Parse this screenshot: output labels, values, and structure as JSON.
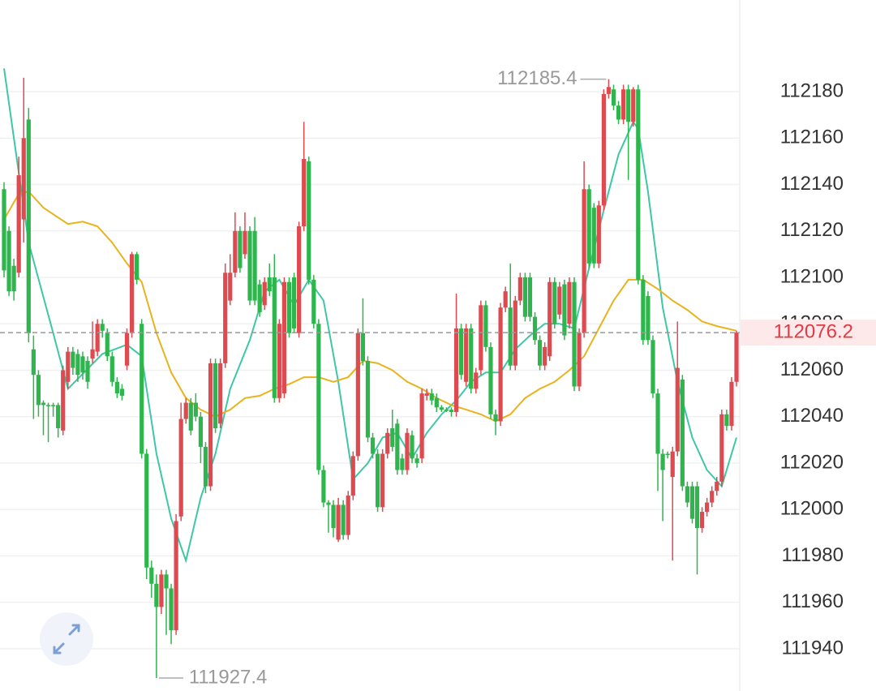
{
  "chart_data": {
    "type": "candlestick",
    "up_color": "#de4a50",
    "down_color": "#2fb54e",
    "ylim": [
      111921.8,
      112219.5
    ],
    "yticks": [
      111940,
      111960,
      111980,
      112000,
      112020,
      112040,
      112060,
      112080,
      112100,
      112120,
      112140,
      112160,
      112180
    ],
    "grid": true,
    "open": [
      112138,
      112120,
      112105,
      112102,
      112125,
      112168,
      112069,
      112058,
      112046,
      112045,
      112045,
      112045,
      112034,
      112055,
      112068,
      112067,
      112066,
      112064,
      112065,
      112068,
      112080,
      112076,
      112066,
      112055,
      112052,
      112062,
      112076,
      112110,
      112080,
      112024,
      111975,
      111968,
      111958,
      111972,
      111966,
      111948,
      111997,
      112039,
      112046,
      112046,
      112040,
      112027,
      112010,
      112063,
      112037,
      112063,
      112090,
      112102,
      112120,
      112110,
      112120,
      112120,
      112097,
      112088,
      112100,
      112100,
      112048,
      112050,
      112098,
      112100,
      112076,
      112122,
      112150,
      112099,
      112080,
      112017,
      112003,
      112002,
      111987,
      112002,
      111989,
      112006,
      112023,
      112076,
      112064,
      112031,
      112024,
      112001,
      112024,
      112035,
      112037,
      112022,
      112017,
      112032,
      112022,
      112022,
      112049,
      112050,
      112048,
      112044,
      112043,
      112043,
      112042,
      112078,
      112055,
      112078,
      112052,
      112060,
      112088,
      112070,
      112041,
      112038,
      112087,
      112087,
      112062,
      112090,
      112100,
      112100,
      112083,
      112073,
      112062,
      112066,
      112098,
      112084,
      112097,
      112080,
      112098,
      112053,
      112076,
      112138,
      112130,
      112106,
      112131,
      112179,
      112181,
      112174,
      112168,
      112181,
      112167,
      112181,
      112099,
      112092,
      112073,
      112050,
      112024,
      112024,
      112014,
      112025,
      112056,
      112010,
      112010,
      112010,
      111992,
      111999,
      112003,
      112008,
      112012,
      112041,
      112036,
      112055
    ],
    "high": [
      112141,
      112122,
      112108,
      112152,
      112186,
      112173,
      112075,
      112060,
      112047,
      112046,
      112046,
      112046,
      112062,
      112070,
      112070,
      112069,
      112068,
      112066,
      112081,
      112082,
      112082,
      112078,
      112068,
      112057,
      112054,
      112078,
      112111,
      112111,
      112082,
      112026,
      111978,
      111972,
      111974,
      111974,
      111968,
      111998,
      112046,
      112048,
      112048,
      112050,
      112042,
      112029,
      112065,
      112065,
      112065,
      112106,
      112110,
      112128,
      112122,
      112128,
      112122,
      112126,
      112099,
      112100,
      112106,
      112110,
      112082,
      112100,
      112100,
      112102,
      112124,
      112167,
      112152,
      112101,
      112082,
      112019,
      112004,
      112004,
      112005,
      112004,
      112008,
      112025,
      112078,
      112091,
      112066,
      112033,
      112026,
      112026,
      112035,
      112043,
      112039,
      112024,
      112035,
      112034,
      112024,
      112052,
      112052,
      112052,
      112050,
      112045,
      112044,
      112044,
      112093,
      112080,
      112080,
      112080,
      112061,
      112090,
      112090,
      112072,
      112043,
      112089,
      112096,
      112106,
      112092,
      112102,
      112102,
      112102,
      112085,
      112075,
      112072,
      112100,
      112100,
      112098,
      112099,
      112100,
      112100,
      112078,
      112150,
      112140,
      112132,
      112133,
      112181,
      112185.4,
      112183,
      112176,
      112183,
      112183,
      112182,
      112183,
      112101,
      112094,
      112075,
      112052,
      112026,
      112025,
      112027,
      112081,
      112058,
      112012,
      112012,
      112012,
      112001,
      112005,
      112010,
      112014,
      112043,
      112043,
      112057,
      112077
    ],
    "low": [
      112100,
      112092,
      112090,
      112100,
      112115,
      112072,
      112039,
      112040,
      112032,
      112029,
      112040,
      112031,
      112032,
      112052,
      112058,
      112055,
      112056,
      112052,
      112063,
      112066,
      112074,
      112064,
      112053,
      112048,
      112047,
      112060,
      112074,
      112097,
      112022,
      111970,
      111962,
      111927.4,
      111955,
      111946,
      111942,
      111946,
      111995,
      112037,
      112032,
      112038,
      112020,
      112007,
      112008,
      112033,
      112035,
      112061,
      112088,
      112100,
      112102,
      112108,
      112088,
      112088,
      112083,
      112086,
      112092,
      112046,
      112046,
      112048,
      112074,
      112076,
      112074,
      112120,
      112097,
      112078,
      112015,
      112001,
      111990,
      111988,
      111986,
      111987,
      111987,
      112004,
      112021,
      112062,
      112029,
      112022,
      111999,
      111999,
      112022,
      112025,
      112015,
      112015,
      112015,
      112020,
      112018,
      112020,
      112047,
      112045,
      112042,
      112042,
      112042,
      112040,
      112040,
      112056,
      112053,
      112050,
      112050,
      112058,
      112068,
      112039,
      112032,
      112036,
      112085,
      112060,
      112060,
      112088,
      112081,
      112081,
      112071,
      112060,
      112060,
      112064,
      112078,
      112082,
      112073,
      112078,
      112051,
      112051,
      112074,
      112104,
      112104,
      112104,
      112129,
      112177,
      112172,
      112166,
      112166,
      112142,
      112165,
      112097,
      112071,
      112071,
      112048,
      112008,
      111995,
      112022,
      111978,
      112023,
      112008,
      112001,
      111994,
      111972,
      111990,
      111997,
      112001,
      112006,
      112010,
      112034,
      112034,
      112053
    ],
    "close": [
      112103,
      112094,
      112094,
      112144,
      112160,
      112076,
      112058,
      112045,
      112045,
      112045,
      112045,
      112035,
      112060,
      112068,
      112061,
      112058,
      112059,
      112055,
      112069,
      112080,
      112077,
      112066,
      112055,
      112050,
      112049,
      112076,
      112110,
      112099,
      112024,
      111975,
      111968,
      111958,
      111972,
      111966,
      111948,
      111995,
      112039,
      112046,
      112034,
      112040,
      112027,
      112010,
      112063,
      112035,
      112063,
      112102,
      112102,
      112120,
      112104,
      112120,
      112090,
      112090,
      112085,
      112098,
      112094,
      112048,
      112080,
      112098,
      112076,
      112078,
      112122,
      112151,
      112099,
      112080,
      112017,
      112003,
      112002,
      111992,
      112002,
      111989,
      112006,
      112023,
      112076,
      112064,
      112031,
      112024,
      112001,
      112024,
      112033,
      112027,
      112017,
      112017,
      112033,
      112022,
      112020,
      112050,
      112050,
      112047,
      112044,
      112043,
      112043,
      112042,
      112078,
      112058,
      112078,
      112052,
      112059,
      112088,
      112070,
      112041,
      112038,
      112087,
      112094,
      112062,
      112090,
      112100,
      112083,
      112083,
      112073,
      112062,
      112070,
      112098,
      112080,
      112096,
      112075,
      112098,
      112053,
      112076,
      112138,
      112106,
      112106,
      112131,
      112179,
      112182,
      112174,
      112168,
      112181,
      112167,
      112181,
      112099,
      112073,
      112073,
      112050,
      112024,
      112017,
      112024,
      112025,
      112061,
      112010,
      112003,
      111996,
      111992,
      111999,
      112003,
      112008,
      112012,
      112041,
      112036,
      112055,
      112076.2
    ],
    "series": [
      {
        "color": "#3ec7a6",
        "x": [
          0,
          5,
          10,
          13,
          20,
          25,
          28,
          31,
          34,
          37,
          40,
          43,
          46,
          50,
          53,
          56,
          59,
          62,
          65,
          68,
          71,
          74,
          77,
          80,
          83,
          86,
          89,
          92,
          95,
          98,
          101,
          104,
          107,
          110,
          113,
          116,
          119,
          122,
          125,
          128,
          129,
          131,
          134,
          137,
          140,
          143,
          146,
          149
        ],
        "values": [
          112190,
          112115,
          112076,
          112052,
          112067,
          112071,
          112066,
          112024,
          111996,
          111978,
          112005,
          112024,
          112052,
          112073,
          112094,
          112099,
          112088,
          112099,
          112090,
          112055,
          112013,
          112020,
          112031,
          112033,
          112022,
          112033,
          112041,
          112047,
          112055,
          112059,
          112059,
          112069,
          112075,
          112080,
          112080,
          112078,
          112104,
          112129,
          112153,
          112167,
          112164,
          112137,
          112087,
          112055,
          112031,
          112017,
          112010,
          112031
        ]
      },
      {
        "color": "#e8b31c",
        "x": [
          0,
          3,
          5,
          8,
          13,
          16,
          19,
          22,
          25,
          28,
          31,
          34,
          37,
          40,
          43,
          46,
          49,
          52,
          55,
          58,
          61,
          64,
          67,
          70,
          73,
          76,
          79,
          82,
          85,
          88,
          91,
          94,
          97,
          100,
          103,
          106,
          109,
          112,
          115,
          118,
          121,
          124,
          127,
          130,
          133,
          136,
          139,
          142,
          145,
          149
        ],
        "values": [
          112125,
          112136,
          112137,
          112130,
          112123,
          112124,
          112122,
          112115,
          112106,
          112098,
          112076,
          112059,
          112048,
          112043,
          112040,
          112043,
          112048,
          112049,
          112052,
          112054,
          112057,
          112057,
          112055,
          112057,
          112064,
          112063,
          112060,
          112055,
          112052,
          112048,
          112045,
          112043,
          112041,
          112038,
          112041,
          112048,
          112052,
          112055,
          112060,
          112066,
          112078,
          112090,
          112099,
          112099,
          112095,
          112090,
          112086,
          112081,
          112079,
          112077
        ]
      }
    ],
    "high_label": 112185.4,
    "low_label": 111927.4,
    "last_price": 112076.2
  }
}
